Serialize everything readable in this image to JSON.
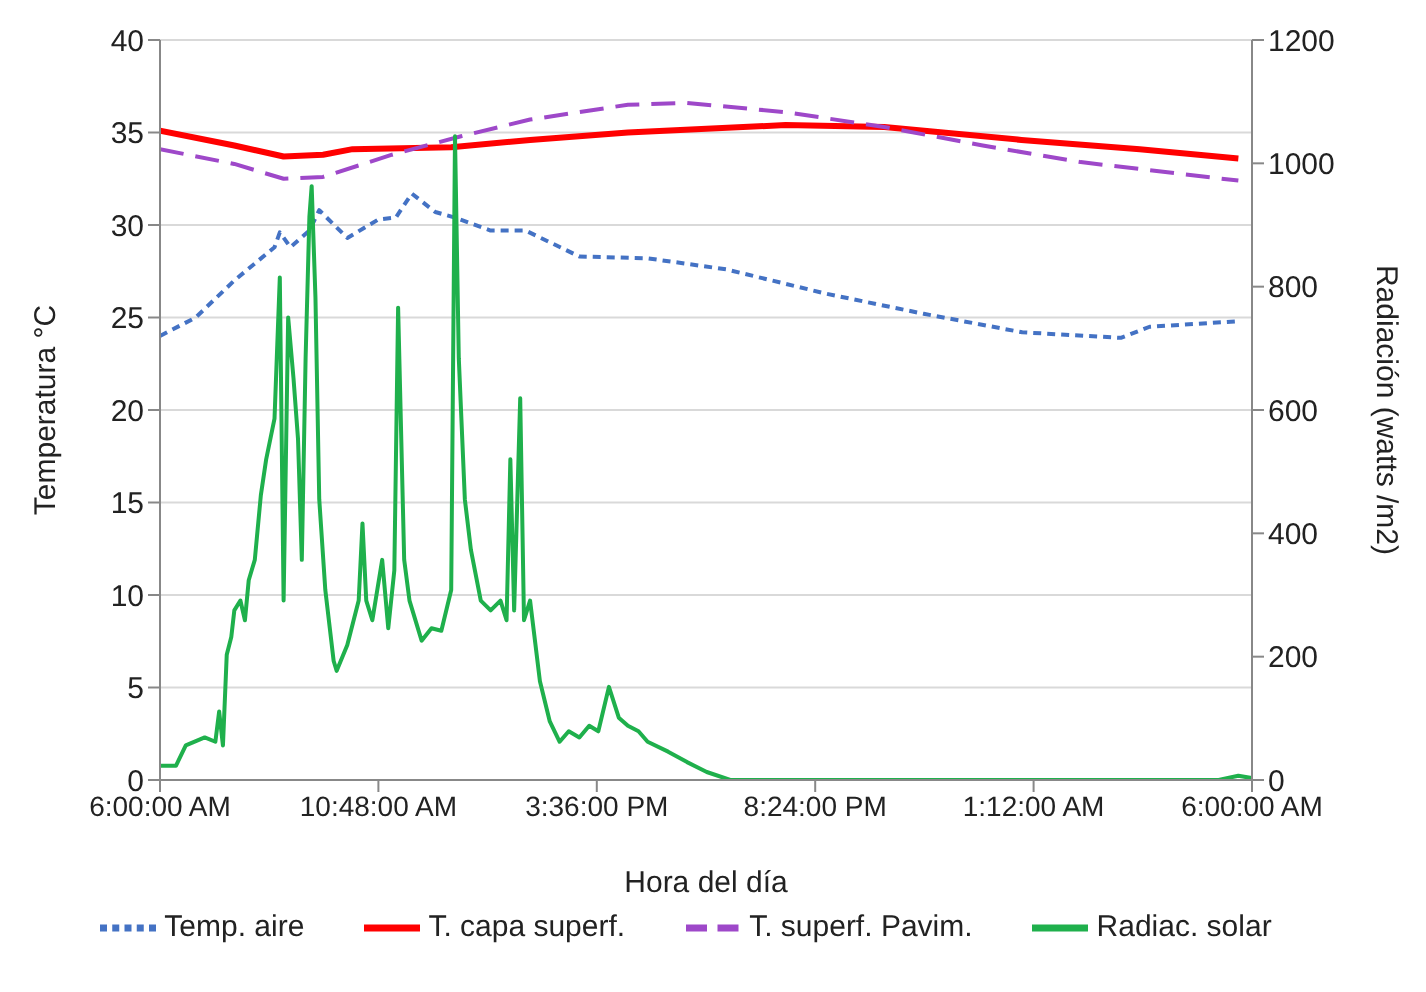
{
  "chart_data": {
    "type": "line",
    "xlabel": "Hora del día",
    "ylabel": "Temperatura °C",
    "y2label": "Radiación (watts /m2)",
    "xlim": [
      "--01-01T06:00",
      "--01-02T06:00"
    ],
    "xticks": [
      {
        "value": "--01-01T06:00",
        "label": "6:00:00 AM"
      },
      {
        "value": "--01-01T10:48",
        "label": "10:48:00 AM"
      },
      {
        "value": "--01-01T15:36",
        "label": "3:36:00 PM"
      },
      {
        "value": "--01-01T20:24",
        "label": "8:24:00 PM"
      },
      {
        "value": "--01-02T01:12",
        "label": "1:12:00 AM"
      },
      {
        "value": "--01-02T06:00",
        "label": "6:00:00 AM"
      }
    ],
    "ylim": [
      0,
      40
    ],
    "yticks": [
      0,
      5,
      10,
      15,
      20,
      25,
      30,
      35,
      40
    ],
    "y2lim": [
      0,
      1200
    ],
    "y2ticks": [
      0,
      200,
      400,
      600,
      800,
      1000,
      1200
    ],
    "grid": "y",
    "legend": "bottom",
    "marker": "none",
    "series": [
      {
        "name": "Temp. aire",
        "color": "#4472c4",
        "line_style": "dotted",
        "x": [
          "--01-01T06:00",
          "--01-01T06:47",
          "--01-01T07:38",
          "--01-01T08:31",
          "--01-01T08:38",
          "--01-01T08:52",
          "--01-01T09:17",
          "--01-01T09:30",
          "--01-01T10:07",
          "--01-01T10:48",
          "--01-01T11:11",
          "--01-01T11:32",
          "--01-01T12:03",
          "--01-01T12:29",
          "--01-01T13:16",
          "--01-01T14:02",
          "--01-01T15:13",
          "--01-01T16:43",
          "--01-01T18:27",
          "--01-01T20:37",
          "--01-01T22:47",
          "--01-02T00:57",
          "--01-02T03:07",
          "--01-02T03:45",
          "--01-02T05:42"
        ],
        "values": [
          24,
          25,
          27,
          28.8,
          29.6,
          28.8,
          29.7,
          30.8,
          29.3,
          30.3,
          30.4,
          31.7,
          30.7,
          30.4,
          29.7,
          29.7,
          28.3,
          28.2,
          27.6,
          26.3,
          25.2,
          24.2,
          23.9,
          24.5,
          24.8
        ]
      },
      {
        "name": "T. capa superf.",
        "color": "#ff0000",
        "line_style": "solid",
        "x": [
          "--01-01T06:00",
          "--01-01T07:38",
          "--01-01T08:43",
          "--01-01T09:35",
          "--01-01T10:14",
          "--01-01T12:24",
          "--01-01T14:08",
          "--01-01T16:17",
          "--01-01T19:45",
          "--01-01T21:55",
          "--01-02T00:56",
          "--01-02T03:32",
          "--01-02T05:42"
        ],
        "values": [
          35.1,
          34.3,
          33.7,
          33.8,
          34.1,
          34.2,
          34.6,
          35,
          35.4,
          35.3,
          34.6,
          34.1,
          33.6
        ]
      },
      {
        "name": "T. superf. Pavim.",
        "color": "#9e48c9",
        "line_style": "dashed",
        "x": [
          "--01-01T06:00",
          "--01-01T07:38",
          "--01-01T08:43",
          "--01-01T09:35",
          "--01-01T11:06",
          "--01-01T12:37",
          "--01-01T14:08",
          "--01-01T16:17",
          "--01-01T17:35",
          "--01-01T19:45",
          "--01-01T21:55",
          "--01-02T00:05",
          "--01-02T02:14",
          "--01-02T05:42"
        ],
        "values": [
          34.1,
          33.3,
          32.5,
          32.6,
          33.8,
          34.8,
          35.7,
          36.5,
          36.6,
          36.1,
          35.3,
          34.3,
          33.4,
          32.4
        ]
      },
      {
        "name": "Radiac. solar",
        "color": "#1fb04c",
        "line_style": "solid",
        "axis": "y2",
        "x": [
          "--01-01T06:00",
          "--01-01T06:21",
          "--01-01T06:34",
          "--01-01T06:59",
          "--01-01T07:13",
          "--01-01T07:18",
          "--01-01T07:23",
          "--01-01T07:28",
          "--01-01T07:34",
          "--01-01T07:38",
          "--01-01T07:46",
          "--01-01T07:52",
          "--01-01T07:57",
          "--01-01T08:05",
          "--01-01T08:13",
          "--01-01T08:20",
          "--01-01T08:31",
          "--01-01T08:38",
          "--01-01T08:43",
          "--01-01T08:49",
          "--01-01T08:56",
          "--01-01T09:02",
          "--01-01T09:07",
          "--01-01T09:12",
          "--01-01T09:17",
          "--01-01T09:20",
          "--01-01T09:25",
          "--01-01T09:30",
          "--01-01T09:38",
          "--01-01T09:49",
          "--01-01T09:53",
          "--01-01T10:07",
          "--01-01T10:22",
          "--01-01T10:27",
          "--01-01T10:32",
          "--01-01T10:40",
          "--01-01T10:53",
          "--01-01T11:01",
          "--01-01T11:09",
          "--01-01T11:14",
          "--01-01T11:22",
          "--01-01T11:29",
          "--01-01T11:45",
          "--01-01T11:58",
          "--01-01T12:11",
          "--01-01T12:24",
          "--01-01T12:29",
          "--01-01T12:34",
          "--01-01T12:42",
          "--01-01T12:50",
          "--01-01T13:03",
          "--01-01T13:16",
          "--01-01T13:29",
          "--01-01T13:37",
          "--01-01T13:42",
          "--01-01T13:47",
          "--01-01T13:55",
          "--01-01T14:00",
          "--01-01T14:08",
          "--01-01T14:21",
          "--01-01T14:34",
          "--01-01T14:47",
          "--01-01T14:59",
          "--01-01T15:13",
          "--01-01T15:26",
          "--01-01T15:38",
          "--01-01T15:52",
          "--01-01T16:05",
          "--01-01T16:17",
          "--01-01T16:31",
          "--01-01T16:43",
          "--01-01T17:10",
          "--01-01T17:35",
          "--01-01T18:01",
          "--01-01T18:32",
          "--01-01T19:45",
          "--01-02T00:05",
          "--01-02T05:16",
          "--01-02T05:42",
          "--01-02T06:00"
        ],
        "values": [
          23,
          23,
          56,
          69,
          62,
          111,
          56,
          203,
          232,
          275,
          291,
          259,
          324,
          357,
          462,
          520,
          586,
          815,
          291,
          750,
          652,
          553,
          357,
          684,
          913,
          963,
          782,
          455,
          308,
          193,
          177,
          219,
          291,
          416,
          291,
          259,
          357,
          246,
          340,
          766,
          357,
          291,
          226,
          246,
          242,
          308,
          1044,
          684,
          455,
          373,
          291,
          275,
          291,
          259,
          520,
          275,
          619,
          259,
          291,
          160,
          95,
          62,
          79,
          69,
          88,
          79,
          151,
          101,
          88,
          79,
          62,
          46,
          29,
          13,
          0,
          0,
          0,
          0,
          7,
          3
        ]
      }
    ]
  }
}
